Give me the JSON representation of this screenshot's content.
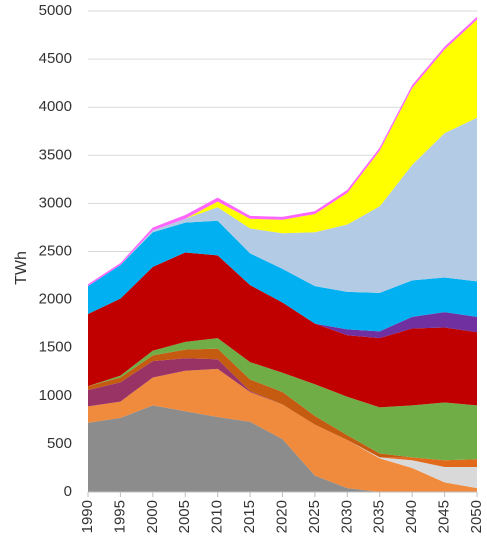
{
  "chart_data": {
    "type": "area",
    "stacked": true,
    "title": "",
    "xlabel": "",
    "ylabel": "TWh",
    "ylim": [
      0,
      5000
    ],
    "y_ticks": [
      0,
      500,
      1000,
      1500,
      2000,
      2500,
      3000,
      3500,
      4000,
      4500,
      5000
    ],
    "x": [
      1990,
      1995,
      2000,
      2005,
      2010,
      2015,
      2020,
      2025,
      2030,
      2035,
      2040,
      2045,
      2050
    ],
    "grid": "horizontal",
    "legend": "none",
    "series": [
      {
        "color": "#8c8c8c",
        "values": [
          720,
          770,
          900,
          840,
          780,
          730,
          550,
          170,
          40,
          0,
          0,
          0,
          0
        ]
      },
      {
        "color": "#f08a3c",
        "values": [
          170,
          170,
          290,
          420,
          500,
          310,
          360,
          530,
          500,
          350,
          250,
          100,
          40
        ]
      },
      {
        "color": "#d9d9d9",
        "values": [
          0,
          0,
          0,
          0,
          0,
          0,
          0,
          0,
          0,
          10,
          80,
          160,
          220
        ]
      },
      {
        "color": "#e06a1a",
        "values": [
          0,
          0,
          0,
          0,
          0,
          0,
          0,
          0,
          0,
          0,
          30,
          70,
          80
        ]
      },
      {
        "color": "#993366",
        "values": [
          170,
          200,
          170,
          130,
          100,
          10,
          0,
          0,
          0,
          0,
          0,
          0,
          0
        ]
      },
      {
        "color": "#c55a11",
        "values": [
          40,
          50,
          60,
          90,
          110,
          120,
          130,
          90,
          50,
          40,
          0,
          0,
          0
        ]
      },
      {
        "color": "#70ad47",
        "values": [
          0,
          20,
          50,
          80,
          110,
          180,
          200,
          330,
          400,
          480,
          540,
          600,
          560
        ]
      },
      {
        "color": "#c00000",
        "values": [
          750,
          800,
          870,
          930,
          860,
          800,
          730,
          630,
          640,
          720,
          800,
          780,
          760
        ]
      },
      {
        "color": "#7030a0",
        "values": [
          0,
          0,
          0,
          0,
          0,
          0,
          0,
          0,
          60,
          70,
          120,
          160,
          160
        ]
      },
      {
        "color": "#00b0f0",
        "values": [
          290,
          350,
          360,
          310,
          360,
          330,
          350,
          390,
          390,
          400,
          380,
          360,
          370
        ]
      },
      {
        "color": "#b4cbe6",
        "values": [
          0,
          0,
          20,
          40,
          140,
          260,
          370,
          560,
          700,
          900,
          1200,
          1500,
          1700
        ]
      },
      {
        "color": "#ffff00",
        "values": [
          0,
          0,
          0,
          0,
          60,
          100,
          140,
          190,
          330,
          580,
          800,
          870,
          1020
        ]
      },
      {
        "color": "#ff66ff",
        "values": [
          20,
          20,
          30,
          40,
          40,
          30,
          30,
          30,
          30,
          30,
          30,
          30,
          30
        ]
      }
    ]
  }
}
